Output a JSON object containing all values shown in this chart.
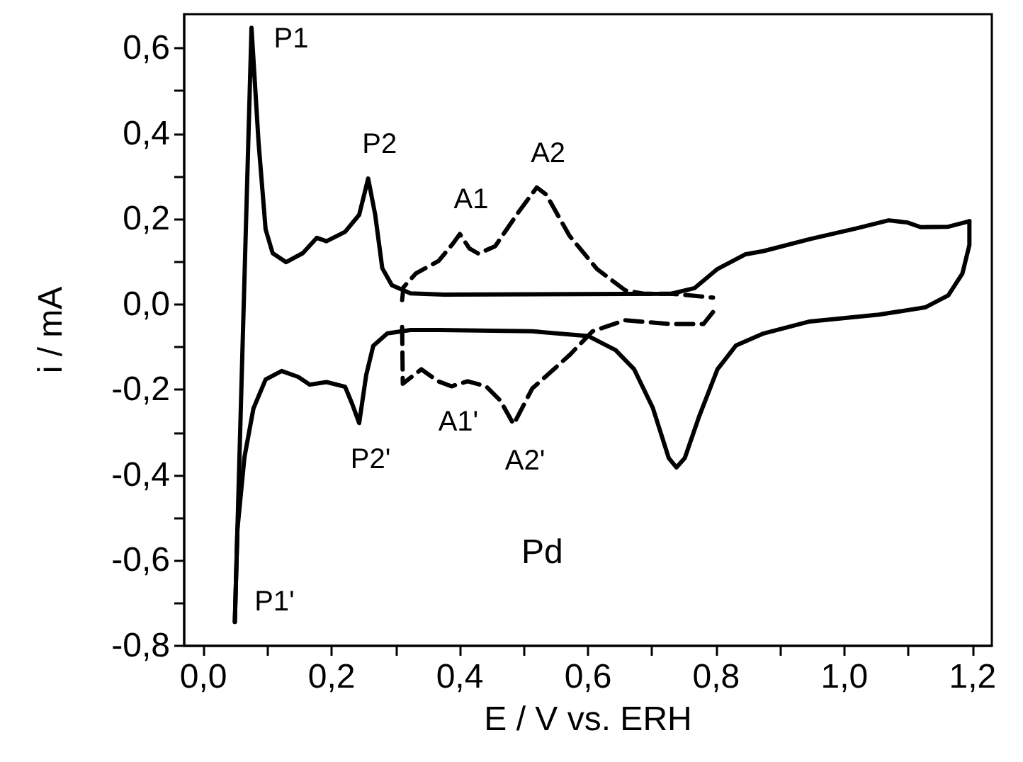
{
  "chart_data": {
    "type": "line",
    "xlabel": "E / V vs. ERH",
    "ylabel": "i / mA",
    "xlim": [
      -0.03,
      1.23
    ],
    "ylim": [
      -0.8,
      0.68
    ],
    "xticks": [
      {
        "value": 0,
        "label": "0,0"
      },
      {
        "value": 0.1,
        "label": null
      },
      {
        "value": 0.2,
        "label": "0,2"
      },
      {
        "value": 0.3,
        "label": null
      },
      {
        "value": 0.4,
        "label": "0,4"
      },
      {
        "value": 0.5,
        "label": null
      },
      {
        "value": 0.6,
        "label": "0,6"
      },
      {
        "value": 0.7,
        "label": null
      },
      {
        "value": 0.8,
        "label": "0,8"
      },
      {
        "value": 0.9,
        "label": null
      },
      {
        "value": 1.0,
        "label": "1,0"
      },
      {
        "value": 1.1,
        "label": null
      },
      {
        "value": 1.2,
        "label": "1,2"
      }
    ],
    "yticks": [
      {
        "value": -0.8,
        "label": "-0,8"
      },
      {
        "value": -0.7,
        "label": null
      },
      {
        "value": -0.6,
        "label": "-0,6"
      },
      {
        "value": -0.5,
        "label": null
      },
      {
        "value": -0.4,
        "label": "-0,4"
      },
      {
        "value": -0.3,
        "label": null
      },
      {
        "value": -0.2,
        "label": "-0,2"
      },
      {
        "value": -0.1,
        "label": null
      },
      {
        "value": 0,
        "label": "0,0"
      },
      {
        "value": 0.1,
        "label": null
      },
      {
        "value": 0.2,
        "label": "0,2"
      },
      {
        "value": 0.3,
        "label": null
      },
      {
        "value": 0.4,
        "label": "0,4"
      },
      {
        "value": 0.5,
        "label": null
      },
      {
        "value": 0.6,
        "label": "0,6"
      }
    ],
    "grid": false,
    "marker": "none",
    "series": [
      {
        "color": "#000000",
        "line_style": "solid",
        "x": [
          0.049,
          0.075,
          0.086,
          0.097,
          0.108,
          0.129,
          0.155,
          0.177,
          0.192,
          0.221,
          0.243,
          0.257,
          0.268,
          0.279,
          0.294,
          0.323,
          0.375,
          0.73,
          0.766,
          0.802,
          0.845,
          0.874,
          0.946,
          1.018,
          1.069,
          1.098,
          1.119,
          1.162,
          1.195
        ],
        "values": [
          -0.744,
          0.648,
          0.38,
          0.176,
          0.12,
          0.099,
          0.12,
          0.156,
          0.148,
          0.17,
          0.21,
          0.295,
          0.21,
          0.085,
          0.045,
          0.026,
          0.023,
          0.025,
          0.038,
          0.083,
          0.117,
          0.125,
          0.153,
          0.178,
          0.197,
          0.192,
          0.181,
          0.182,
          0.195
        ]
      },
      {
        "color": "#000000",
        "line_style": "solid",
        "x": [
          1.195,
          1.195,
          1.184,
          1.162,
          1.126,
          1.054,
          0.946,
          0.874,
          0.831,
          0.802,
          0.773,
          0.751,
          0.738,
          0.726,
          0.701,
          0.672,
          0.643,
          0.6,
          0.513,
          0.368,
          0.323,
          0.287,
          0.265,
          0.254,
          0.243,
          0.232,
          0.221,
          0.192,
          0.166,
          0.148,
          0.122,
          0.097,
          0.078,
          0.064,
          0.053,
          0.049
        ],
        "values": [
          0.195,
          0.139,
          0.072,
          0.021,
          -0.007,
          -0.024,
          -0.04,
          -0.068,
          -0.096,
          -0.152,
          -0.264,
          -0.36,
          -0.382,
          -0.36,
          -0.242,
          -0.152,
          -0.107,
          -0.074,
          -0.063,
          -0.06,
          -0.06,
          -0.068,
          -0.097,
          -0.165,
          -0.278,
          -0.233,
          -0.193,
          -0.182,
          -0.188,
          -0.17,
          -0.156,
          -0.176,
          -0.244,
          -0.358,
          -0.528,
          -0.744
        ]
      },
      {
        "color": "#000000",
        "line_style": "dashed",
        "x": [
          0.31,
          0.312,
          0.331,
          0.367,
          0.389,
          0.4,
          0.415,
          0.429,
          0.455,
          0.492,
          0.52,
          0.535,
          0.571,
          0.614,
          0.658,
          0.687,
          0.73,
          0.795
        ],
        "values": [
          0.01,
          0.04,
          0.072,
          0.102,
          0.142,
          0.165,
          0.131,
          0.119,
          0.136,
          0.217,
          0.274,
          0.257,
          0.161,
          0.083,
          0.033,
          0.025,
          0.025,
          0.016
        ]
      },
      {
        "color": "#000000",
        "line_style": "dashed",
        "x": [
          0.795,
          0.78,
          0.73,
          0.658,
          0.607,
          0.571,
          0.513,
          0.484,
          0.463,
          0.441,
          0.412,
          0.387,
          0.366,
          0.34,
          0.311,
          0.31
        ],
        "values": [
          -0.018,
          -0.046,
          -0.046,
          -0.037,
          -0.063,
          -0.119,
          -0.197,
          -0.281,
          -0.225,
          -0.192,
          -0.18,
          -0.192,
          -0.18,
          -0.152,
          -0.186,
          -0.051
        ]
      }
    ],
    "annotations": [
      {
        "text": "P1",
        "x": 0.075,
        "y": 0.648
      },
      {
        "text": "P2",
        "x": 0.257,
        "y": 0.295
      },
      {
        "text": "A1",
        "x": 0.4,
        "y": 0.165
      },
      {
        "text": "A2",
        "x": 0.52,
        "y": 0.274
      },
      {
        "text": "A1'",
        "x": 0.38,
        "y": -0.19
      },
      {
        "text": "A2'",
        "x": 0.484,
        "y": -0.281
      },
      {
        "text": "P2'",
        "x": 0.243,
        "y": -0.278
      },
      {
        "text": "P1'",
        "x": 0.049,
        "y": -0.744
      },
      "Pd"
    ]
  }
}
